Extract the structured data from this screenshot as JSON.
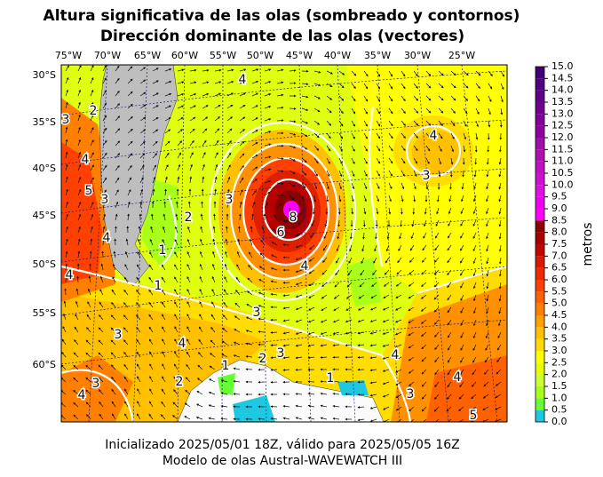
{
  "title": [
    "Altura significativa de las olas (sombreado y contornos)",
    "Dirección dominante de las olas (vectores)"
  ],
  "lon_labels": [
    "75°W",
    "70°W",
    "65°W",
    "60°W",
    "55°W",
    "50°W",
    "45°W",
    "40°W",
    "35°W",
    "30°W",
    "25°W"
  ],
  "lat_labels": [
    "30°S",
    "35°S",
    "40°S",
    "45°S",
    "50°S",
    "55°S",
    "60°S"
  ],
  "colorbar": {
    "label": "metros",
    "ticks": [
      {
        "value": 0,
        "label": "0.0"
      },
      {
        "value": 0.5,
        "label": "0.5"
      },
      {
        "value": 1,
        "label": "1.0"
      },
      {
        "value": 1.5,
        "label": "1.5"
      },
      {
        "value": 2,
        "label": "2.0"
      },
      {
        "value": 2.5,
        "label": "2.5"
      },
      {
        "value": 3,
        "label": "3.0"
      },
      {
        "value": 3.5,
        "label": "3.5"
      },
      {
        "value": 4,
        "label": "4.0"
      },
      {
        "value": 4.5,
        "label": "4.5"
      },
      {
        "value": 5,
        "label": "5.0"
      },
      {
        "value": 5.5,
        "label": "5.5"
      },
      {
        "value": 6,
        "label": "6.0"
      },
      {
        "value": 6.5,
        "label": "6.5"
      },
      {
        "value": 7,
        "label": "7.0"
      },
      {
        "value": 7.5,
        "label": "7.5"
      },
      {
        "value": 8,
        "label": "8.0"
      },
      {
        "value": 8.5,
        "label": "8.5"
      },
      {
        "value": 9,
        "label": "9.0"
      },
      {
        "value": 9.5,
        "label": "9.5"
      },
      {
        "value": 10,
        "label": "10.0"
      },
      {
        "value": 10.5,
        "label": "10.5"
      },
      {
        "value": 11,
        "label": "11.0"
      },
      {
        "value": 11.5,
        "label": "11.5"
      },
      {
        "value": 12,
        "label": "12.0"
      },
      {
        "value": 12.5,
        "label": "12.5"
      },
      {
        "value": 13,
        "label": "13.0"
      },
      {
        "value": 13.5,
        "label": "13.5"
      },
      {
        "value": 14,
        "label": "14.0"
      },
      {
        "value": 14.5,
        "label": "14.5"
      },
      {
        "value": 15,
        "label": "15.0"
      }
    ],
    "colors": [
      "#1ec8e0",
      "#66ff33",
      "#a8ff1a",
      "#ccff33",
      "#e6ff00",
      "#ffff00",
      "#ffdd00",
      "#ffc000",
      "#ffa000",
      "#ff8000",
      "#ff6000",
      "#ff4000",
      "#ee2a00",
      "#d81800",
      "#c00800",
      "#a80000",
      "#8b0000",
      "#ff00ff",
      "#f000f0",
      "#e010e0",
      "#d010d0",
      "#c010c0",
      "#b010b0",
      "#a010a8",
      "#9000a0",
      "#800098",
      "#700090",
      "#600088",
      "#500080",
      "#400078"
    ]
  },
  "contour_labels": [
    "4",
    "3",
    "2",
    "4",
    "5",
    "3",
    "4",
    "2",
    "1",
    "1",
    "3",
    "4",
    "3",
    "3",
    "4",
    "4",
    "4",
    "3",
    "4",
    "3",
    "4",
    "5",
    "1",
    "2",
    "3",
    "4",
    "3",
    "2",
    "1",
    "8",
    "6"
  ],
  "footer": [
    "Inicializado 2025/05/01 18Z, válido para 2025/05/05 16Z",
    "Modelo de olas Austral-WAVEWATCH III"
  ]
}
